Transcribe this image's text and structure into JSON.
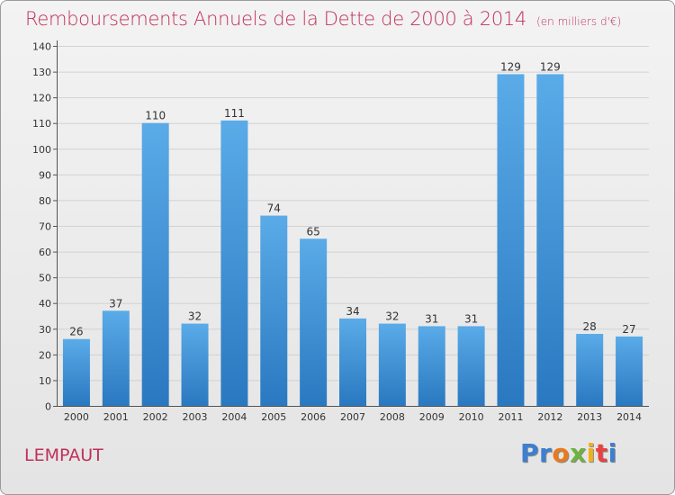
{
  "header": {
    "title": "Remboursements Annuels de la Dette de 2000 à 2014",
    "unit": "(en milliers d'€)"
  },
  "footer": {
    "town": "LEMPAUT",
    "logo": "Proxiti"
  },
  "colors": {
    "title": "#c0305a",
    "bar_top": "#5aabe8",
    "bar_bottom": "#2a78c0",
    "logo_letters": [
      "#3d7fd1",
      "#3d7fd1",
      "#e87a1e",
      "#6db33f",
      "#f0b21a",
      "#e9423f",
      "#3d7fd1"
    ]
  },
  "chart_data": {
    "type": "bar",
    "categories": [
      "2000",
      "2001",
      "2002",
      "2003",
      "2004",
      "2005",
      "2006",
      "2007",
      "2008",
      "2009",
      "2010",
      "2011",
      "2012",
      "2013",
      "2014"
    ],
    "values": [
      26,
      37,
      110,
      32,
      111,
      74,
      65,
      34,
      32,
      31,
      31,
      129,
      129,
      28,
      27
    ],
    "ylim": [
      0,
      140
    ],
    "yticks": [
      0,
      10,
      20,
      30,
      40,
      50,
      60,
      70,
      80,
      90,
      100,
      110,
      120,
      130,
      140
    ],
    "grid": true,
    "data_labels": true
  }
}
